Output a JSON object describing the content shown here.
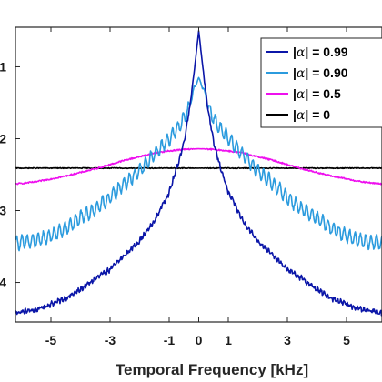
{
  "chart_data": {
    "type": "line",
    "xlabel": "Temporal Frequency [kHz]",
    "xlim": [
      -6.2,
      6.2
    ],
    "ylim": [
      -4.55,
      -0.45
    ],
    "x_ticks": [
      -5,
      -3,
      -1,
      0,
      1,
      3,
      5
    ],
    "x_tick_labels": [
      "-5",
      "-3",
      "-1",
      "0",
      "1",
      "3",
      "5"
    ],
    "y_ticks": [
      -1,
      -2,
      -3,
      -4
    ],
    "y_tick_labels": [
      "1",
      "2",
      "3",
      "4"
    ],
    "grid": false,
    "legend_position": "top-right",
    "series": [
      {
        "name": "|α| = 0.99",
        "color": "#0b16a8",
        "points": [
          [
            -6.2,
            -4.42
          ],
          [
            -5.5,
            -4.38
          ],
          [
            -5,
            -4.3
          ],
          [
            -4.5,
            -4.22
          ],
          [
            -4,
            -4.1
          ],
          [
            -3.5,
            -3.95
          ],
          [
            -3,
            -3.82
          ],
          [
            -2.5,
            -3.62
          ],
          [
            -2,
            -3.42
          ],
          [
            -1.5,
            -3.15
          ],
          [
            -1.2,
            -2.9
          ],
          [
            -1,
            -2.75
          ],
          [
            -0.7,
            -2.35
          ],
          [
            -0.5,
            -2.05
          ],
          [
            -0.3,
            -1.55
          ],
          [
            -0.15,
            -1.05
          ],
          [
            0,
            -0.5
          ],
          [
            0.15,
            -1.05
          ],
          [
            0.3,
            -1.55
          ],
          [
            0.5,
            -2.05
          ],
          [
            0.7,
            -2.35
          ],
          [
            1,
            -2.75
          ],
          [
            1.2,
            -2.9
          ],
          [
            1.5,
            -3.15
          ],
          [
            2,
            -3.42
          ],
          [
            2.5,
            -3.62
          ],
          [
            3,
            -3.82
          ],
          [
            3.5,
            -3.95
          ],
          [
            4,
            -4.1
          ],
          [
            4.5,
            -4.22
          ],
          [
            5,
            -4.3
          ],
          [
            5.5,
            -4.38
          ],
          [
            6.2,
            -4.42
          ]
        ]
      },
      {
        "name": "|α| = 0.90",
        "color": "#2b9bde",
        "points": [
          [
            -6.2,
            -3.45
          ],
          [
            -5.5,
            -3.42
          ],
          [
            -5,
            -3.35
          ],
          [
            -4.5,
            -3.25
          ],
          [
            -4,
            -3.1
          ],
          [
            -3.5,
            -2.98
          ],
          [
            -3,
            -2.82
          ],
          [
            -2.5,
            -2.62
          ],
          [
            -2,
            -2.45
          ],
          [
            -1.5,
            -2.22
          ],
          [
            -1,
            -2.0
          ],
          [
            -0.7,
            -1.85
          ],
          [
            -0.4,
            -1.65
          ],
          [
            -0.15,
            -1.3
          ],
          [
            0,
            -1.15
          ],
          [
            0.15,
            -1.3
          ],
          [
            0.4,
            -1.65
          ],
          [
            0.7,
            -1.85
          ],
          [
            1,
            -2.0
          ],
          [
            1.5,
            -2.22
          ],
          [
            2,
            -2.45
          ],
          [
            2.5,
            -2.62
          ],
          [
            3,
            -2.82
          ],
          [
            3.5,
            -2.98
          ],
          [
            4,
            -3.1
          ],
          [
            4.5,
            -3.25
          ],
          [
            5,
            -3.35
          ],
          [
            5.5,
            -3.42
          ],
          [
            6.2,
            -3.45
          ]
        ]
      },
      {
        "name": "|α| = 0.5",
        "color": "#ee10ee",
        "points": [
          [
            -6.2,
            -2.63
          ],
          [
            -5.5,
            -2.6
          ],
          [
            -5,
            -2.56
          ],
          [
            -4.5,
            -2.52
          ],
          [
            -4,
            -2.47
          ],
          [
            -3.5,
            -2.42
          ],
          [
            -3,
            -2.36
          ],
          [
            -2.5,
            -2.3
          ],
          [
            -2,
            -2.25
          ],
          [
            -1.5,
            -2.2
          ],
          [
            -1,
            -2.17
          ],
          [
            -0.5,
            -2.15
          ],
          [
            0,
            -2.14
          ],
          [
            0.5,
            -2.15
          ],
          [
            1,
            -2.17
          ],
          [
            1.5,
            -2.2
          ],
          [
            2,
            -2.25
          ],
          [
            2.5,
            -2.3
          ],
          [
            3,
            -2.36
          ],
          [
            3.5,
            -2.42
          ],
          [
            4,
            -2.47
          ],
          [
            4.5,
            -2.52
          ],
          [
            5,
            -2.56
          ],
          [
            5.5,
            -2.6
          ],
          [
            6.2,
            -2.63
          ]
        ]
      },
      {
        "name": "|α| = 0",
        "color": "#000000",
        "points": [
          [
            -6.2,
            -2.41
          ],
          [
            0,
            -2.41
          ],
          [
            6.2,
            -2.41
          ]
        ]
      }
    ]
  }
}
